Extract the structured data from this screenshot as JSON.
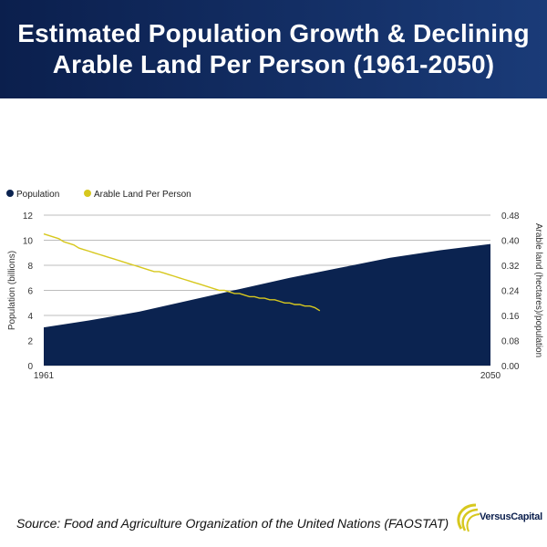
{
  "header": {
    "title": "Estimated Population Growth & Declining Arable Land Per Person (1961-2050)"
  },
  "colors": {
    "header_bg": "#0b1f4d",
    "population": "#0b2350",
    "arable": "#d7c81e",
    "grid": "#bdbdbd"
  },
  "chart_data": {
    "type": "area",
    "title": "",
    "legend": [
      "Population",
      "Arable Land Per Person"
    ],
    "legend_position": "top-left",
    "x_start_label": "1961",
    "x_end_label": "2050",
    "xlim": [
      1961,
      2050
    ],
    "y_left": {
      "label": "Population (billions)",
      "ylim": [
        0,
        12
      ],
      "ticks": [
        "0",
        "2",
        "4",
        "6",
        "8",
        "10",
        "12"
      ]
    },
    "y_right": {
      "label": "Arable land (hectares)/population",
      "ylim": [
        0,
        0.48
      ],
      "ticks": [
        "0.00",
        "0.08",
        "0.16",
        "0.24",
        "0.32",
        "0.40",
        "0.48"
      ]
    },
    "series": [
      {
        "name": "Population",
        "axis": "left",
        "type": "area",
        "x": [
          1961,
          1970,
          1980,
          1990,
          2000,
          2010,
          2020,
          2030,
          2040,
          2050
        ],
        "values": [
          3.05,
          3.6,
          4.3,
          5.2,
          6.1,
          7.0,
          7.8,
          8.6,
          9.2,
          9.7
        ]
      },
      {
        "name": "Arable Land Per Person",
        "axis": "right",
        "type": "line",
        "x": [
          1961,
          1962,
          1963,
          1964,
          1965,
          1966,
          1967,
          1968,
          1969,
          1970,
          1971,
          1972,
          1973,
          1974,
          1975,
          1976,
          1977,
          1978,
          1979,
          1980,
          1981,
          1982,
          1983,
          1984,
          1985,
          1986,
          1987,
          1988,
          1989,
          1990,
          1991,
          1992,
          1993,
          1994,
          1995,
          1996,
          1997,
          1998,
          1999,
          2000,
          2001,
          2002,
          2003,
          2004,
          2005,
          2006,
          2007,
          2008,
          2009,
          2010,
          2011,
          2012,
          2013,
          2014,
          2015,
          2016
        ],
        "values": [
          0.42,
          0.415,
          0.41,
          0.405,
          0.395,
          0.39,
          0.385,
          0.375,
          0.37,
          0.365,
          0.36,
          0.355,
          0.35,
          0.345,
          0.34,
          0.335,
          0.33,
          0.325,
          0.32,
          0.315,
          0.31,
          0.305,
          0.3,
          0.3,
          0.295,
          0.29,
          0.285,
          0.28,
          0.275,
          0.27,
          0.265,
          0.26,
          0.255,
          0.25,
          0.245,
          0.24,
          0.24,
          0.235,
          0.23,
          0.23,
          0.225,
          0.22,
          0.22,
          0.215,
          0.215,
          0.21,
          0.21,
          0.205,
          0.2,
          0.2,
          0.195,
          0.195,
          0.19,
          0.19,
          0.185,
          0.175
        ]
      }
    ]
  },
  "footer": {
    "source": "Source: Food and Agriculture Organization of the United Nations (FAOSTAT)",
    "logo_text": "VersusCapital"
  }
}
